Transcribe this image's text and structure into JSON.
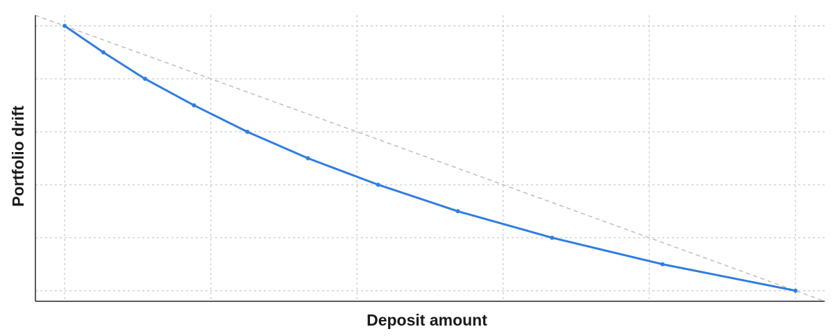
{
  "chart_data": {
    "type": "line",
    "title": "",
    "xlabel": "Deposit amount",
    "ylabel": "Portfolio drift",
    "xlim": [
      -0.04,
      1.04
    ],
    "ylim": [
      -0.04,
      1.04
    ],
    "x_gridlines": [
      0,
      0.2,
      0.4,
      0.6,
      0.8,
      1.0
    ],
    "y_gridlines": [
      0,
      0.2,
      0.4,
      0.6,
      0.8,
      1.0
    ],
    "grid": true,
    "legend": "none",
    "colors": {
      "series": "#2f7de1",
      "reference": "#bdbdbd",
      "grid": "#cfcfcf",
      "axis": "#222222"
    },
    "series": [
      {
        "x": [
          0,
          0.053,
          0.11,
          0.177,
          0.25,
          0.333,
          0.429,
          0.538,
          0.667,
          0.818,
          1.0
        ],
        "y": [
          1.0,
          0.9,
          0.8,
          0.7,
          0.6,
          0.5,
          0.4,
          0.3,
          0.2,
          0.1,
          0.0
        ]
      }
    ],
    "reference_line": {
      "x": [
        -0.04,
        1.04
      ],
      "y": [
        1.04,
        -0.04
      ]
    }
  }
}
